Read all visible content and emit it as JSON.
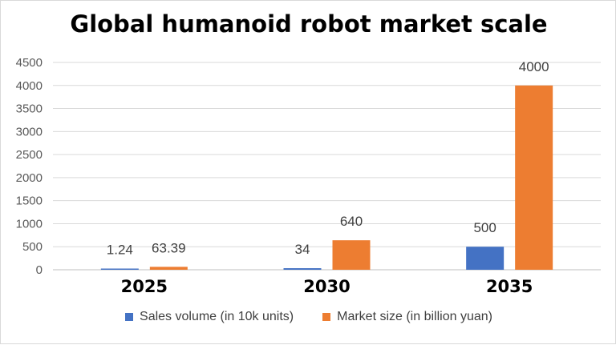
{
  "chart_data": {
    "type": "bar",
    "title": "Global humanoid robot market scale",
    "categories": [
      "2025",
      "2030",
      "2035"
    ],
    "series": [
      {
        "name": "Sales volume (in 10k units)",
        "values": [
          1.24,
          34,
          500
        ],
        "labels": [
          "1.24",
          "34",
          "500"
        ],
        "color": "#4472C4"
      },
      {
        "name": "Market size (in billion yuan)",
        "values": [
          63.39,
          640,
          4000
        ],
        "labels": [
          "63.39",
          "640",
          "4000"
        ],
        "color": "#ED7D31"
      }
    ],
    "yticks": [
      "0",
      "500",
      "1000",
      "1500",
      "2000",
      "2500",
      "3000",
      "3500",
      "4000",
      "4500"
    ],
    "ylim": [
      0,
      4500
    ],
    "xlabel": "",
    "ylabel": "",
    "grid": true,
    "legend_position": "bottom"
  }
}
